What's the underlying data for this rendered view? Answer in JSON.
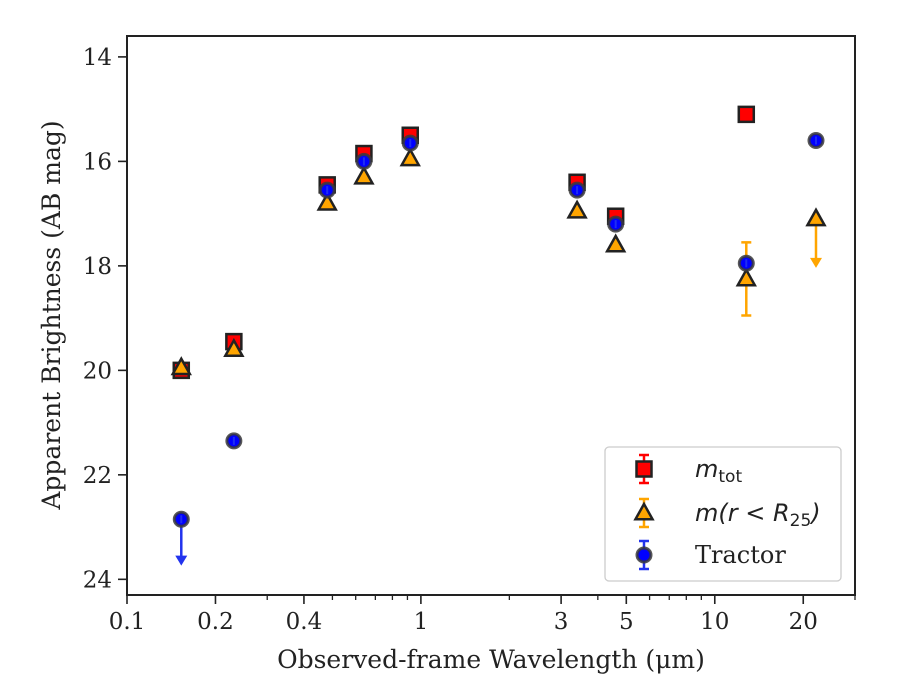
{
  "chart_data": {
    "type": "scatter",
    "xlabel": "Observed-frame Wavelength (μm)",
    "ylabel": "Apparent Brightness (AB mag)",
    "x_scale": "log",
    "xlim": [
      0.1,
      30
    ],
    "ylim": [
      24.3,
      13.6
    ],
    "y_inverted": true,
    "grid": false,
    "legend_position": "lower-right",
    "x_ticks": [
      {
        "value": 0.1,
        "label": "0.1"
      },
      {
        "value": 0.2,
        "label": "0.2"
      },
      {
        "value": 0.4,
        "label": "0.4"
      },
      {
        "value": 1,
        "label": "1"
      },
      {
        "value": 3,
        "label": "3"
      },
      {
        "value": 5,
        "label": "5"
      },
      {
        "value": 10,
        "label": "10"
      },
      {
        "value": 20,
        "label": "20"
      }
    ],
    "y_ticks": [
      {
        "value": 14,
        "label": "14"
      },
      {
        "value": 16,
        "label": "16"
      },
      {
        "value": 18,
        "label": "18"
      },
      {
        "value": 20,
        "label": "20"
      },
      {
        "value": 22,
        "label": "22"
      },
      {
        "value": 24,
        "label": "24"
      }
    ],
    "series": [
      {
        "key": "mtot",
        "legend": {
          "base": "m",
          "sub": "tot"
        },
        "marker": "square",
        "color": "#ff0000",
        "edge_color": "#222222",
        "points": [
          {
            "x": 0.153,
            "y": 20.0
          },
          {
            "x": 0.231,
            "y": 19.45
          },
          {
            "x": 0.48,
            "y": 16.45
          },
          {
            "x": 0.64,
            "y": 15.85
          },
          {
            "x": 0.92,
            "y": 15.5
          },
          {
            "x": 3.4,
            "y": 16.4
          },
          {
            "x": 4.6,
            "y": 17.05
          },
          {
            "x": 12.8,
            "y": 15.1
          }
        ]
      },
      {
        "key": "mr25",
        "legend": {
          "base": "m(r < R",
          "sub": "25",
          "tail": ")"
        },
        "marker": "triangle",
        "color": "#ffa500",
        "edge_color": "#222222",
        "points": [
          {
            "x": 0.153,
            "y": 19.95
          },
          {
            "x": 0.231,
            "y": 19.6
          },
          {
            "x": 0.48,
            "y": 16.8
          },
          {
            "x": 0.64,
            "y": 16.3
          },
          {
            "x": 0.92,
            "y": 15.95
          },
          {
            "x": 3.4,
            "y": 16.95
          },
          {
            "x": 4.6,
            "y": 17.6
          },
          {
            "x": 12.8,
            "y": 18.25,
            "yerr": [
              18.95,
              17.55
            ]
          },
          {
            "x": 22.1,
            "y": 17.1,
            "upper_limit": 18.0
          }
        ]
      },
      {
        "key": "tractor",
        "legend": {
          "base": "Tractor"
        },
        "marker": "circle",
        "color": "#0000ff",
        "edge_color": "#222222",
        "points": [
          {
            "x": 0.153,
            "y": 22.85,
            "upper_limit": 23.7
          },
          {
            "x": 0.231,
            "y": 21.35
          },
          {
            "x": 0.48,
            "y": 16.55
          },
          {
            "x": 0.64,
            "y": 16.0
          },
          {
            "x": 0.92,
            "y": 15.65
          },
          {
            "x": 3.4,
            "y": 16.55
          },
          {
            "x": 4.6,
            "y": 17.2
          },
          {
            "x": 12.8,
            "y": 17.95
          },
          {
            "x": 22.1,
            "y": 15.6
          }
        ]
      }
    ]
  }
}
